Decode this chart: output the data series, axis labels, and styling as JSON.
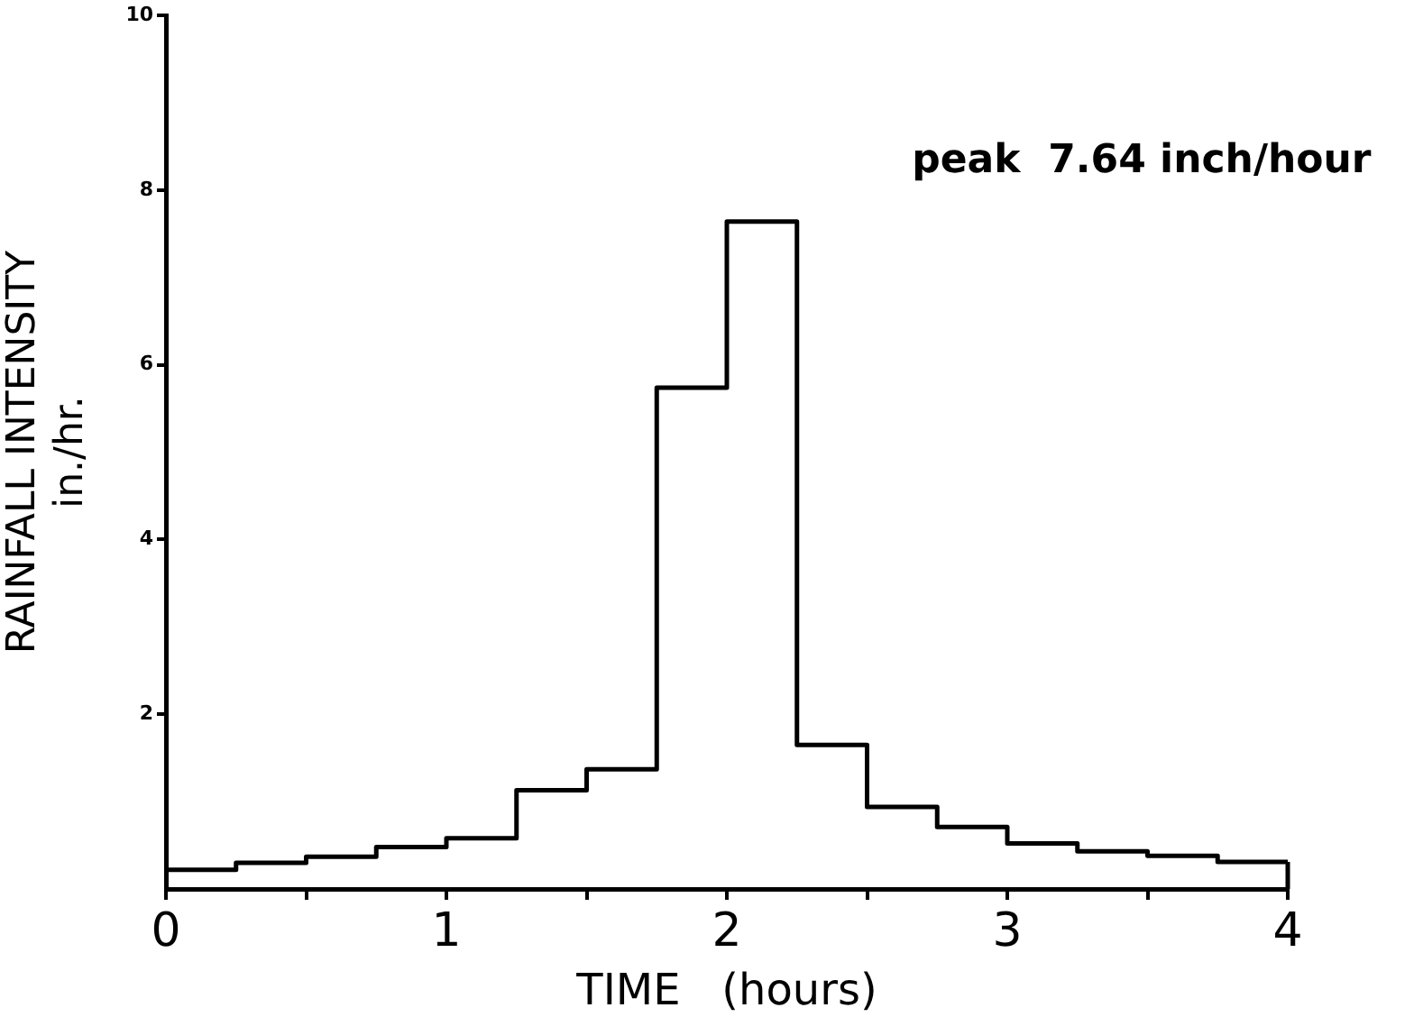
{
  "chart_data": {
    "type": "step",
    "xlabel": "TIME   (hours)",
    "ylabel": "RAINFALL INTENSITY\nin./hr.",
    "x": [
      0,
      0.25,
      0.5,
      0.75,
      1,
      1.25,
      1.5,
      1.75,
      2,
      2.25,
      2.5,
      2.75,
      3,
      3.25,
      3.5,
      3.75,
      4
    ],
    "values": [
      0.22,
      0.3,
      0.37,
      0.48,
      0.58,
      1.13,
      1.37,
      5.74,
      7.64,
      1.65,
      0.94,
      0.71,
      0.52,
      0.43,
      0.38,
      0.31,
      0.31
    ],
    "color": "#000000",
    "xlim": [
      0,
      4
    ],
    "xticks": [
      0,
      {
        "value": 0.5,
        "label": null
      },
      1,
      {
        "value": 1.5,
        "label": null
      },
      2,
      {
        "value": 2.5,
        "label": null
      },
      3,
      {
        "value": 3.5,
        "label": null
      },
      4
    ],
    "ylim": [
      0,
      10
    ],
    "yticks": [
      2,
      4,
      6,
      8,
      10
    ],
    "annotations": [
      "peak  7.64 inch/hour"
    ],
    "grid": false,
    "legend": false
  }
}
